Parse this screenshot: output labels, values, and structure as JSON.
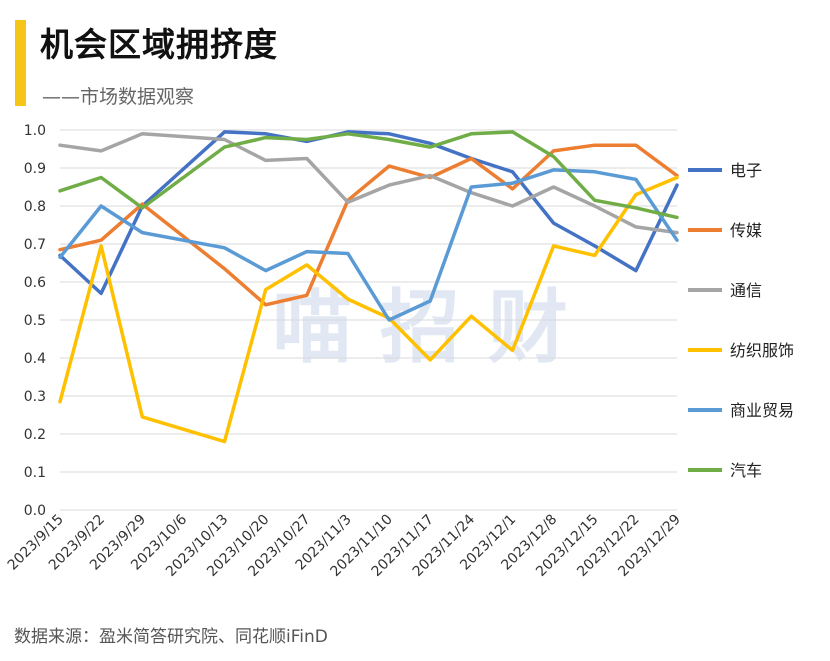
{
  "header": {
    "title": "机会区域拥挤度",
    "subtitle": "——市场数据观察",
    "accent_color": "#F5C518"
  },
  "watermark": "喵 招 财",
  "source": "数据来源：盈米简答研究院、同花顺iFinD",
  "chart_data": {
    "type": "line",
    "x": [
      "2023/9/15",
      "2023/9/22",
      "2023/9/29",
      "2023/10/6",
      "2023/10/13",
      "2023/10/20",
      "2023/10/27",
      "2023/11/3",
      "2023/11/10",
      "2023/11/17",
      "2023/11/24",
      "2023/12/1",
      "2023/12/8",
      "2023/12/15",
      "2023/12/22",
      "2023/12/29"
    ],
    "ylim": [
      0,
      1.0
    ],
    "yticks": [
      "0.0",
      "0.1",
      "0.2",
      "0.3",
      "0.4",
      "0.5",
      "0.6",
      "0.7",
      "0.8",
      "0.9",
      "1.0"
    ],
    "grid": true,
    "legend_position": "right",
    "series": [
      {
        "name": "电子",
        "color": "#4472C4",
        "values": [
          0.67,
          0.57,
          0.8,
          null,
          0.995,
          0.99,
          0.97,
          0.995,
          0.99,
          0.965,
          0.925,
          0.89,
          0.755,
          0.695,
          0.63,
          0.855
        ]
      },
      {
        "name": "传媒",
        "color": "#ED7D31",
        "values": [
          0.685,
          0.71,
          0.805,
          null,
          0.635,
          0.54,
          0.565,
          0.815,
          0.905,
          0.875,
          0.925,
          0.845,
          0.945,
          0.96,
          0.96,
          0.88
        ]
      },
      {
        "name": "通信",
        "color": "#A5A5A5",
        "values": [
          0.96,
          0.945,
          0.99,
          null,
          0.975,
          0.92,
          0.925,
          0.81,
          0.855,
          0.88,
          0.835,
          0.8,
          0.85,
          0.8,
          0.745,
          0.73
        ]
      },
      {
        "name": "纺织服饰",
        "color": "#FFC000",
        "values": [
          0.285,
          0.695,
          0.245,
          null,
          0.18,
          0.58,
          0.645,
          0.555,
          0.505,
          0.395,
          0.51,
          0.42,
          0.695,
          0.67,
          0.83,
          0.875
        ]
      },
      {
        "name": "商业贸易",
        "color": "#5B9BD5",
        "values": [
          0.665,
          0.8,
          0.73,
          null,
          0.69,
          0.63,
          0.68,
          0.675,
          0.5,
          0.55,
          0.85,
          0.86,
          0.895,
          0.89,
          0.87,
          0.71
        ]
      },
      {
        "name": "汽车",
        "color": "#70AD47",
        "values": [
          0.84,
          0.875,
          0.795,
          null,
          0.955,
          0.98,
          0.975,
          0.99,
          0.975,
          0.955,
          0.99,
          0.995,
          0.93,
          0.815,
          0.795,
          0.77
        ]
      }
    ]
  }
}
